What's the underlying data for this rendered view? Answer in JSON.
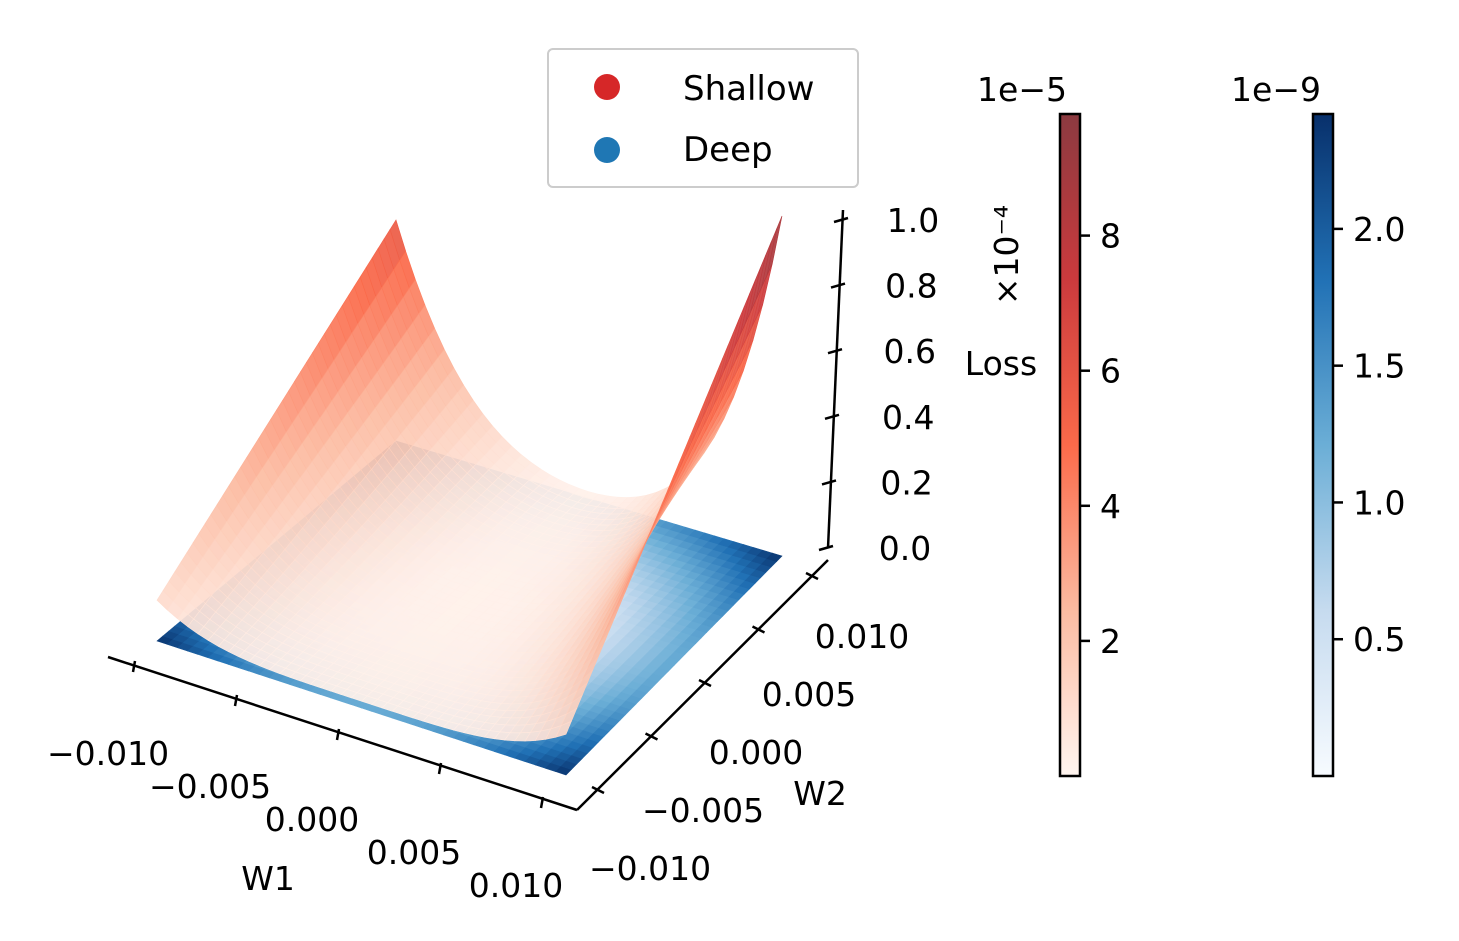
{
  "chart_data": {
    "type": "surface3d",
    "xlabel": "W1",
    "ylabel": "W2",
    "zlabel": "Loss",
    "zscale_label": "×10⁻⁴",
    "xlim": [
      -0.01,
      0.01
    ],
    "ylim": [
      -0.01,
      0.01
    ],
    "zlim": [
      0,
      1.0
    ],
    "x_ticks": [
      "−0.010",
      "−0.005",
      "0.000",
      "0.005",
      "0.010"
    ],
    "y_ticks": [
      "−0.010",
      "−0.005",
      "0.000",
      "0.005",
      "0.010"
    ],
    "z_ticks": [
      "0.0",
      "0.2",
      "0.4",
      "0.6",
      "0.8",
      "1.0"
    ],
    "grid": false,
    "legend_position": "top-center",
    "series": [
      {
        "name": "Shallow",
        "color": "#d62728",
        "colormap": "Reds",
        "colorbar_offset": "1e−5",
        "colorbar_ticks": [
          "2",
          "4",
          "6",
          "8"
        ],
        "colorbar_range": [
          0,
          9.8
        ],
        "z_corners": {
          "x_min_y_min": 0.12,
          "x_min_y_max": 0.65,
          "x_max_y_min": 0.12,
          "x_max_y_max": 1.0
        }
      },
      {
        "name": "Deep",
        "color": "#1f77b4",
        "colormap": "Blues",
        "colorbar_offset": "1e−9",
        "colorbar_ticks": [
          "0.5",
          "1.0",
          "1.5",
          "2.0"
        ],
        "colorbar_range": [
          0,
          2.42
        ],
        "z_plane": 0.0
      }
    ]
  }
}
